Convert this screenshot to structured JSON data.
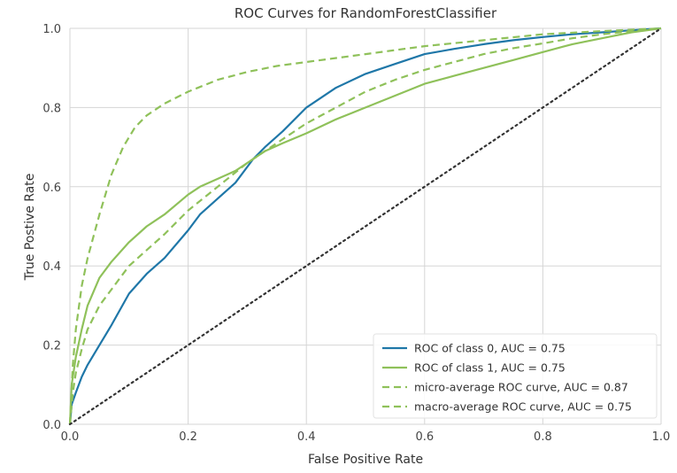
{
  "chart_data": {
    "type": "line",
    "title": "ROC Curves for RandomForestClassifier",
    "xlabel": "False Positive Rate",
    "ylabel": "True Postive Rate",
    "xlim": [
      0,
      1
    ],
    "ylim": [
      0,
      1
    ],
    "xticks": [
      "0.0",
      "0.2",
      "0.4",
      "0.6",
      "0.8",
      "1.0"
    ],
    "yticks": [
      "0.0",
      "0.2",
      "0.4",
      "0.6",
      "0.8",
      "1.0"
    ],
    "grid": true,
    "legend_position": "lower-right",
    "series": [
      {
        "name": "ROC of class 0, AUC = 0.75",
        "color": "#1f77a8",
        "style": "solid",
        "x": [
          0,
          0.003,
          0.01,
          0.02,
          0.03,
          0.05,
          0.07,
          0.1,
          0.13,
          0.16,
          0.2,
          0.22,
          0.25,
          0.28,
          0.31,
          0.33,
          0.36,
          0.4,
          0.45,
          0.5,
          0.55,
          0.6,
          0.65,
          0.7,
          0.75,
          0.8,
          0.85,
          0.9,
          0.95,
          1.0
        ],
        "y": [
          0,
          0.05,
          0.08,
          0.12,
          0.15,
          0.2,
          0.25,
          0.33,
          0.38,
          0.42,
          0.49,
          0.53,
          0.57,
          0.61,
          0.67,
          0.7,
          0.74,
          0.8,
          0.85,
          0.885,
          0.91,
          0.935,
          0.948,
          0.96,
          0.97,
          0.978,
          0.985,
          0.99,
          0.995,
          1.0
        ]
      },
      {
        "name": "ROC of class 1, AUC = 0.75",
        "color": "#8fc15a",
        "style": "solid",
        "x": [
          0,
          0.003,
          0.01,
          0.02,
          0.03,
          0.05,
          0.07,
          0.1,
          0.13,
          0.16,
          0.2,
          0.22,
          0.25,
          0.28,
          0.31,
          0.33,
          0.36,
          0.4,
          0.45,
          0.5,
          0.55,
          0.6,
          0.65,
          0.7,
          0.75,
          0.8,
          0.85,
          0.9,
          0.95,
          1.0
        ],
        "y": [
          0,
          0.1,
          0.17,
          0.24,
          0.3,
          0.37,
          0.41,
          0.46,
          0.5,
          0.53,
          0.58,
          0.6,
          0.62,
          0.64,
          0.67,
          0.69,
          0.71,
          0.735,
          0.77,
          0.8,
          0.83,
          0.86,
          0.88,
          0.9,
          0.92,
          0.94,
          0.96,
          0.975,
          0.99,
          1.0
        ]
      },
      {
        "name": "micro-average ROC curve, AUC = 0.87",
        "color": "#8fc15a",
        "style": "dashed",
        "x": [
          0,
          0.005,
          0.01,
          0.02,
          0.03,
          0.05,
          0.07,
          0.09,
          0.11,
          0.13,
          0.16,
          0.2,
          0.25,
          0.3,
          0.35,
          0.4,
          0.5,
          0.6,
          0.7,
          0.8,
          0.9,
          1.0
        ],
        "y": [
          0,
          0.15,
          0.24,
          0.35,
          0.42,
          0.53,
          0.63,
          0.7,
          0.75,
          0.78,
          0.81,
          0.84,
          0.87,
          0.89,
          0.905,
          0.915,
          0.935,
          0.955,
          0.97,
          0.985,
          0.993,
          1.0
        ]
      },
      {
        "name": "macro-average ROC curve, AUC = 0.75",
        "color": "#8fc15a",
        "style": "dashed",
        "x": [
          0,
          0.005,
          0.01,
          0.02,
          0.03,
          0.05,
          0.07,
          0.1,
          0.13,
          0.16,
          0.2,
          0.25,
          0.3,
          0.35,
          0.4,
          0.45,
          0.5,
          0.55,
          0.6,
          0.65,
          0.7,
          0.75,
          0.8,
          0.85,
          0.9,
          0.95,
          1.0
        ],
        "y": [
          0,
          0.08,
          0.13,
          0.19,
          0.24,
          0.3,
          0.34,
          0.4,
          0.44,
          0.48,
          0.54,
          0.6,
          0.66,
          0.71,
          0.76,
          0.8,
          0.84,
          0.87,
          0.895,
          0.915,
          0.935,
          0.95,
          0.962,
          0.975,
          0.985,
          0.993,
          1.0
        ]
      },
      {
        "name": "",
        "color": "#333333",
        "style": "dotted",
        "x": [
          0,
          1
        ],
        "y": [
          0,
          1
        ]
      }
    ]
  }
}
